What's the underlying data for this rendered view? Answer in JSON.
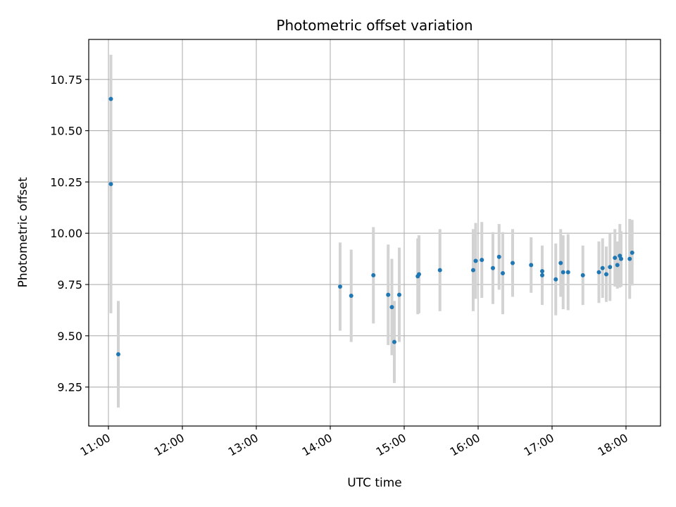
{
  "chart_data": {
    "type": "scatter",
    "title": "Photometric offset variation",
    "xlabel": "UTC time",
    "ylabel": "Photometric offset",
    "xlim": [
      "10:44",
      "18:28"
    ],
    "ylim": [
      9.06,
      10.945
    ],
    "xticks": [
      "11:00",
      "12:00",
      "13:00",
      "14:00",
      "15:00",
      "16:00",
      "17:00",
      "18:00"
    ],
    "yticks": [
      "9.25",
      "9.50",
      "9.75",
      "10.00",
      "10.25",
      "10.50",
      "10.75"
    ],
    "grid": true,
    "colors": {
      "point": "#1f77b4",
      "errorbar": "#d3d3d3",
      "grid": "#b0b0b0"
    },
    "points": [
      {
        "x": "11:02",
        "y": 10.655,
        "err": 0.215
      },
      {
        "x": "11:02",
        "y": 10.24,
        "err": 0.63
      },
      {
        "x": "11:08",
        "y": 9.41,
        "err": 0.26
      },
      {
        "x": "14:08",
        "y": 9.74,
        "err": 0.215
      },
      {
        "x": "14:17",
        "y": 9.695,
        "err": 0.225
      },
      {
        "x": "14:35",
        "y": 9.795,
        "err": 0.235
      },
      {
        "x": "14:47",
        "y": 9.7,
        "err": 0.245
      },
      {
        "x": "14:50",
        "y": 9.64,
        "err": 0.235
      },
      {
        "x": "14:52",
        "y": 9.47,
        "err": 0.2
      },
      {
        "x": "14:56",
        "y": 9.7,
        "err": 0.23
      },
      {
        "x": "15:11",
        "y": 9.79,
        "err": 0.185
      },
      {
        "x": "15:12",
        "y": 9.8,
        "err": 0.19
      },
      {
        "x": "15:29",
        "y": 9.82,
        "err": 0.2
      },
      {
        "x": "15:56",
        "y": 9.82,
        "err": 0.2
      },
      {
        "x": "15:58",
        "y": 9.865,
        "err": 0.185
      },
      {
        "x": "16:03",
        "y": 9.87,
        "err": 0.185
      },
      {
        "x": "16:12",
        "y": 9.83,
        "err": 0.175
      },
      {
        "x": "16:17",
        "y": 9.885,
        "err": 0.16
      },
      {
        "x": "16:20",
        "y": 9.805,
        "err": 0.2
      },
      {
        "x": "16:28",
        "y": 9.855,
        "err": 0.165
      },
      {
        "x": "16:43",
        "y": 9.845,
        "err": 0.135
      },
      {
        "x": "16:52",
        "y": 9.795,
        "err": 0.145
      },
      {
        "x": "16:52",
        "y": 9.815,
        "err": 0.115
      },
      {
        "x": "17:03",
        "y": 9.775,
        "err": 0.175
      },
      {
        "x": "17:07",
        "y": 9.855,
        "err": 0.165
      },
      {
        "x": "17:09",
        "y": 9.81,
        "err": 0.18
      },
      {
        "x": "17:13",
        "y": 9.81,
        "err": 0.185
      },
      {
        "x": "17:25",
        "y": 9.795,
        "err": 0.145
      },
      {
        "x": "17:38",
        "y": 9.81,
        "err": 0.15
      },
      {
        "x": "17:41",
        "y": 9.83,
        "err": 0.145
      },
      {
        "x": "17:44",
        "y": 9.8,
        "err": 0.135
      },
      {
        "x": "17:47",
        "y": 9.835,
        "err": 0.165
      },
      {
        "x": "17:51",
        "y": 9.88,
        "err": 0.14
      },
      {
        "x": "17:53",
        "y": 9.845,
        "err": 0.115
      },
      {
        "x": "17:55",
        "y": 9.89,
        "err": 0.155
      },
      {
        "x": "17:56",
        "y": 9.875,
        "err": 0.135
      },
      {
        "x": "18:03",
        "y": 9.875,
        "err": 0.195
      },
      {
        "x": "18:05",
        "y": 9.905,
        "err": 0.16
      }
    ]
  }
}
